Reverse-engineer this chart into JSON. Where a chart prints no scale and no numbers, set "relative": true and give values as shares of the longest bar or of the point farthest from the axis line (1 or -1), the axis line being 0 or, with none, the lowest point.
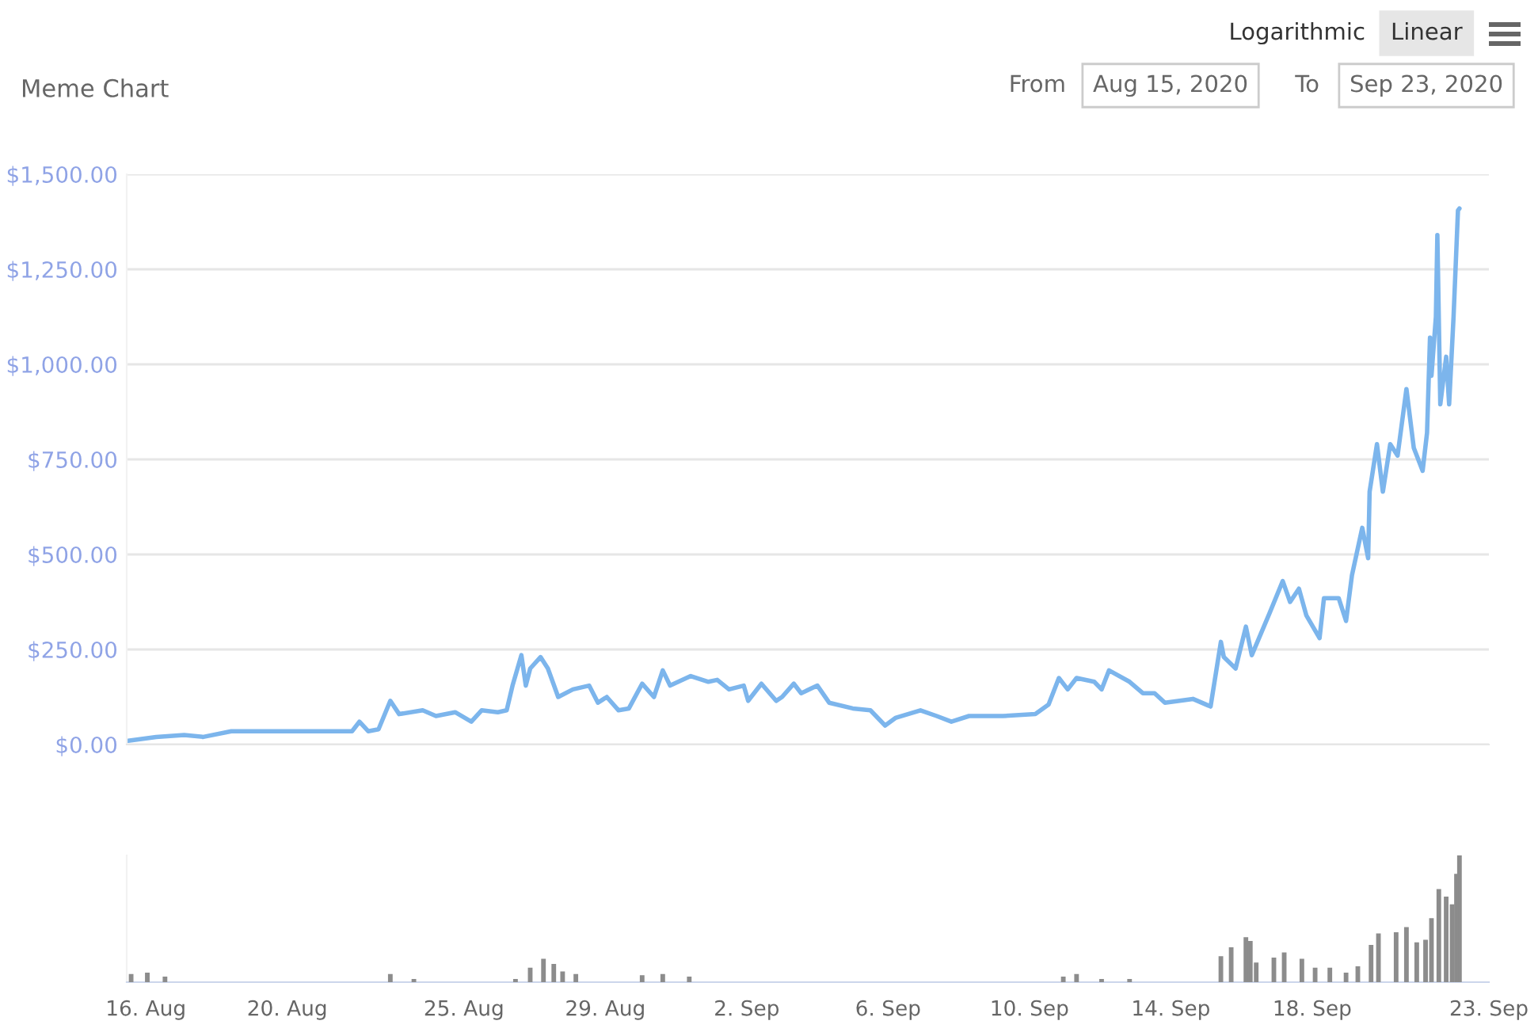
{
  "chart_data": [
    {
      "type": "line",
      "title": "Meme Chart",
      "annotations": [
        "Logarithmic",
        "Linear",
        "From",
        "Aug 15, 2020",
        "To",
        "Sep 23, 2020"
      ],
      "x": [
        "2020-08-15T12:00",
        "2020-08-16T07:00",
        "2020-08-17T02:00",
        "2020-08-17T15:00",
        "2020-08-18T10:00",
        "2020-08-18T22:00",
        "2020-08-20T06:00",
        "2020-08-21T20:00",
        "2020-08-22T01:00",
        "2020-08-22T07:00",
        "2020-08-22T14:00",
        "2020-08-22T22:00",
        "2020-08-23T04:00",
        "2020-08-23T20:00",
        "2020-08-24T05:00",
        "2020-08-24T18:00",
        "2020-08-25T05:00",
        "2020-08-25T12:00",
        "2020-08-25T23:00",
        "2020-08-26T05:00",
        "2020-08-26T09:00",
        "2020-08-26T15:00",
        "2020-08-26T18:00",
        "2020-08-26T21:00",
        "2020-08-27T04:00",
        "2020-08-27T09:00",
        "2020-08-27T16:00",
        "2020-08-28T02:00",
        "2020-08-28T13:00",
        "2020-08-28T19:00",
        "2020-08-29T01:00",
        "2020-08-29T09:00",
        "2020-08-29T16:00",
        "2020-08-30T01:00",
        "2020-08-30T09:00",
        "2020-08-30T15:00",
        "2020-08-30T20:00",
        "2020-08-31T10:00",
        "2020-08-31T22:00",
        "2020-09-01T04:00",
        "2020-09-01T12:00",
        "2020-09-01T22:00",
        "2020-09-02T01:00",
        "2020-09-02T10:00",
        "2020-09-02T20:00",
        "2020-09-03T00:00",
        "2020-09-03T08:00",
        "2020-09-03T13:00",
        "2020-09-04T00:00",
        "2020-09-04T08:00",
        "2020-09-05T00:00",
        "2020-09-05T12:00",
        "2020-09-05T22:00",
        "2020-09-06T05:00",
        "2020-09-06T22:00",
        "2020-09-07T09:00",
        "2020-09-07T19:00",
        "2020-09-08T07:00",
        "2020-09-09T06:00",
        "2020-09-10T04:00",
        "2020-09-10T13:00",
        "2020-09-10T20:00",
        "2020-09-11T02:00",
        "2020-09-11T08:00",
        "2020-09-11T20:00",
        "2020-09-12T01:00",
        "2020-09-12T06:00",
        "2020-09-12T20:00",
        "2020-09-13T05:00",
        "2020-09-13T13:00",
        "2020-09-13T20:00",
        "2020-09-14T15:00",
        "2020-09-15T03:00",
        "2020-09-15T10:00",
        "2020-09-15T12:00",
        "2020-09-15T20:00",
        "2020-09-16T03:00",
        "2020-09-16T07:00",
        "2020-09-16T19:00",
        "2020-09-17T04:00",
        "2020-09-17T09:00",
        "2020-09-17T15:00",
        "2020-09-17T20:00",
        "2020-09-18T05:00",
        "2020-09-18T08:00",
        "2020-09-18T18:00",
        "2020-09-18T23:00",
        "2020-09-19T03:00",
        "2020-09-19T10:00",
        "2020-09-19T14:00",
        "2020-09-19T15:00",
        "2020-09-19T20:00",
        "2020-09-20T00:00",
        "2020-09-20T05:00",
        "2020-09-20T10:00",
        "2020-09-20T16:00",
        "2020-09-20T21:00",
        "2020-09-21T03:00",
        "2020-09-21T06:00",
        "2020-09-21T08:00",
        "2020-09-21T09:00",
        "2020-09-21T12:00",
        "2020-09-21T13:00",
        "2020-09-21T15:00",
        "2020-09-21T19:00",
        "2020-09-21T21:00",
        "2020-09-22T00:00",
        "2020-09-22T03:00",
        "2020-09-22T04:00"
      ],
      "series": [
        {
          "color": "#7cb5ec",
          "values": [
            10,
            20,
            25,
            20,
            35,
            35,
            35,
            35,
            60,
            35,
            40,
            115,
            80,
            90,
            75,
            85,
            60,
            90,
            85,
            90,
            155,
            235,
            155,
            200,
            230,
            200,
            125,
            145,
            155,
            110,
            125,
            90,
            95,
            160,
            125,
            195,
            155,
            180,
            165,
            170,
            145,
            155,
            115,
            160,
            115,
            125,
            160,
            135,
            155,
            110,
            95,
            90,
            50,
            70,
            90,
            75,
            60,
            75,
            75,
            80,
            105,
            175,
            145,
            175,
            165,
            145,
            195,
            165,
            135,
            135,
            110,
            120,
            100,
            270,
            230,
            200,
            310,
            235,
            345,
            430,
            375,
            410,
            340,
            280,
            385,
            385,
            325,
            445,
            570,
            490,
            665,
            790,
            665,
            790,
            760,
            935,
            780,
            720,
            820,
            1070,
            970,
            1125,
            1340,
            895,
            1020,
            895,
            1125,
            1405,
            1410
          ]
        }
      ],
      "xlim": [
        "2020-08-15T11:00",
        "2020-09-23T00:00"
      ],
      "ylim": [
        0,
        1500
      ],
      "yticks": [
        {
          "value": 0,
          "label": "$0.00"
        },
        {
          "value": 250,
          "label": "$250.00"
        },
        {
          "value": 500,
          "label": "$500.00"
        },
        {
          "value": 750,
          "label": "$750.00"
        },
        {
          "value": 1000,
          "label": "$1,000.00"
        },
        {
          "value": 1250,
          "label": "$1,250.00"
        },
        {
          "value": 1500,
          "label": "$1,500.00"
        }
      ],
      "grid": "y",
      "tick_labels": "y"
    },
    {
      "type": "bar",
      "relative": true,
      "color": "#8c8c8c",
      "x": [
        "2020-08-15T14:00",
        "2020-08-16T01:00",
        "2020-08-16T13:00",
        "2020-08-17T06:00",
        "2020-08-22T22:00",
        "2020-08-23T14:00",
        "2020-08-26T11:00",
        "2020-08-26T21:00",
        "2020-08-27T06:00",
        "2020-08-27T13:00",
        "2020-08-27T19:00",
        "2020-08-28T04:00",
        "2020-08-28T23:00",
        "2020-08-30T01:00",
        "2020-08-30T15:00",
        "2020-08-31T09:00",
        "2020-09-01T10:00",
        "2020-09-02T12:00",
        "2020-09-03T10:00",
        "2020-09-06T21:00",
        "2020-09-10T23:00",
        "2020-09-11T08:00",
        "2020-09-12T01:00",
        "2020-09-12T20:00",
        "2020-09-15T10:00",
        "2020-09-15T17:00",
        "2020-09-16T03:00",
        "2020-09-16T06:00",
        "2020-09-16T10:00",
        "2020-09-16T22:00",
        "2020-09-17T05:00",
        "2020-09-17T17:00",
        "2020-09-18T02:00",
        "2020-09-18T12:00",
        "2020-09-18T23:00",
        "2020-09-19T07:00",
        "2020-09-19T16:00",
        "2020-09-19T21:00",
        "2020-09-20T09:00",
        "2020-09-20T16:00",
        "2020-09-20T23:00",
        "2020-09-21T05:00",
        "2020-09-21T09:00",
        "2020-09-21T14:00",
        "2020-09-21T19:00",
        "2020-09-21T23:00",
        "2020-09-22T02:00",
        "2020-09-22T04:00"
      ],
      "values": [
        0.06,
        0.07,
        0.04,
        null,
        0.06,
        0.02,
        0.02,
        0.11,
        0.18,
        0.14,
        0.08,
        0.06,
        null,
        0.05,
        0.06,
        0.04,
        null,
        null,
        null,
        null,
        0.04,
        0.06,
        0.02,
        0.02,
        0.2,
        0.27,
        0.35,
        0.32,
        0.15,
        0.19,
        0.23,
        0.18,
        0.11,
        0.11,
        0.07,
        0.12,
        0.29,
        0.38,
        0.39,
        0.43,
        0.31,
        0.33,
        0.5,
        0.73,
        0.67,
        0.61,
        0.85,
        1.0
      ],
      "xlim": [
        "2020-08-15T11:00",
        "2020-09-23T00:00"
      ],
      "xticks": [
        {
          "value": "2020-08-16",
          "label": "16. Aug"
        },
        {
          "value": "2020-08-20",
          "label": "20. Aug"
        },
        {
          "value": "2020-08-25",
          "label": "25. Aug"
        },
        {
          "value": "2020-08-29",
          "label": "29. Aug"
        },
        {
          "value": "2020-09-02",
          "label": "2. Sep"
        },
        {
          "value": "2020-09-06",
          "label": "6. Sep"
        },
        {
          "value": "2020-09-10",
          "label": "10. Sep"
        },
        {
          "value": "2020-09-14",
          "label": "14. Sep"
        },
        {
          "value": "2020-09-18",
          "label": "18. Sep"
        },
        {
          "value": "2020-09-23",
          "label": "23. Sep"
        }
      ],
      "tick_labels": "x"
    }
  ]
}
